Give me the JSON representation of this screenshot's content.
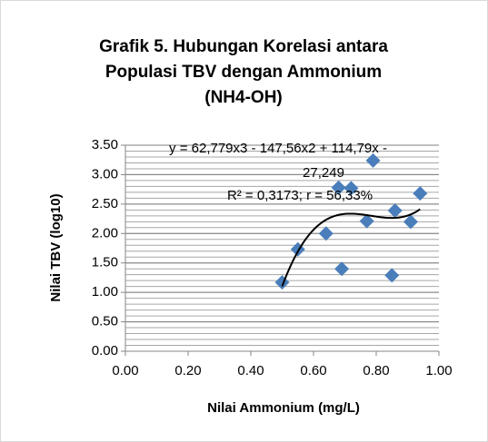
{
  "chart_data": {
    "type": "scatter",
    "title": [
      "Grafik 5. Hubungan Korelasi antara",
      "Populasi TBV dengan Ammonium",
      "(NH4-OH)"
    ],
    "x_label": "Nilai Ammonium (mg/L)",
    "y_label": "Nilai TBV (log10)",
    "color": "#4a7ebb",
    "x": [
      0.5,
      0.55,
      0.64,
      0.68,
      0.69,
      0.72,
      0.77,
      0.79,
      0.85,
      0.86,
      0.91,
      0.94
    ],
    "values": [
      1.17,
      1.73,
      2.0,
      2.78,
      1.4,
      2.77,
      2.21,
      3.24,
      1.29,
      2.39,
      2.2,
      2.68
    ],
    "xlim": [
      0,
      1
    ],
    "ylim": [
      0,
      3.5
    ],
    "xticks": [
      {
        "value": 0,
        "label": "0.00"
      },
      {
        "value": 0.2,
        "label": "0.20"
      },
      {
        "value": 0.4,
        "label": "0.40"
      },
      {
        "value": 0.6,
        "label": "0.60"
      },
      {
        "value": 0.8,
        "label": "0.80"
      },
      {
        "value": 1,
        "label": "1.00"
      }
    ],
    "yticks": [
      {
        "value": 0,
        "label": "0.00"
      },
      {
        "value": 0.5,
        "label": "0.50"
      },
      {
        "value": 1,
        "label": "1.00"
      },
      {
        "value": 1.5,
        "label": "1.50"
      },
      {
        "value": 2,
        "label": "2.00"
      },
      {
        "value": 2.5,
        "label": "2.50"
      },
      {
        "value": 3,
        "label": "3.00"
      },
      {
        "value": 3.5,
        "label": "3.50"
      }
    ],
    "grid": true,
    "minor_grid_step": 0.1,
    "trendline": {
      "type": "polynomial",
      "color": "#000000",
      "coefficients": [
        62.779,
        -147.56,
        114.79,
        -27.249
      ],
      "xrange": [
        0.5,
        0.94
      ],
      "label": [
        "y = 62,779x3 - 147,56x2 + 114,79x -",
        "27,249",
        "R² = 0,3173; r = 56,33%"
      ]
    }
  }
}
